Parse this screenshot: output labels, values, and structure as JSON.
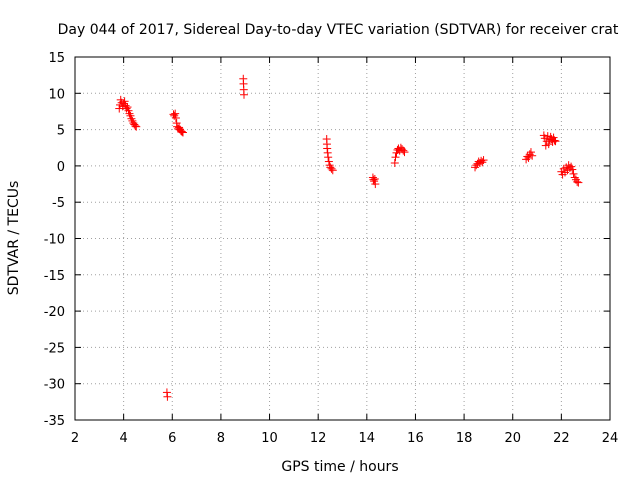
{
  "chart_data": {
    "type": "scatter",
    "title": "Day 044 of 2017, Sidereal Day-to-day VTEC variation (SDTVAR) for receiver crat",
    "xlabel": "GPS time / hours",
    "ylabel": "SDTVAR / TECUs",
    "xlim": [
      2,
      24
    ],
    "ylim": [
      -35,
      15
    ],
    "xticks": [
      "2",
      "4",
      "6",
      "8",
      "10",
      "12",
      "14",
      "16",
      "18",
      "20",
      "22",
      "24"
    ],
    "yticks": [
      "15",
      "10",
      "5",
      "0",
      "-5",
      "-10",
      "-15",
      "-20",
      "-25",
      "-30",
      "-35"
    ],
    "grid": true,
    "marker": "+",
    "color": "#ff0000",
    "series": [
      {
        "name": "SDTVAR",
        "points": [
          [
            3.82,
            7.9
          ],
          [
            3.85,
            8.4
          ],
          [
            3.88,
            9.1
          ],
          [
            3.92,
            8.7
          ],
          [
            3.96,
            8.2
          ],
          [
            4.0,
            8.6
          ],
          [
            4.04,
            8.9
          ],
          [
            4.08,
            8.3
          ],
          [
            4.12,
            7.9
          ],
          [
            4.16,
            8.1
          ],
          [
            4.2,
            7.6
          ],
          [
            4.24,
            7.2
          ],
          [
            4.28,
            6.9
          ],
          [
            4.32,
            6.5
          ],
          [
            4.36,
            6.2
          ],
          [
            4.4,
            5.9
          ],
          [
            4.44,
            5.7
          ],
          [
            4.48,
            5.5
          ],
          [
            4.52,
            5.4
          ],
          [
            5.78,
            -31.2
          ],
          [
            5.8,
            -31.8
          ],
          [
            6.05,
            7.1
          ],
          [
            6.08,
            6.9
          ],
          [
            6.12,
            7.2
          ],
          [
            6.15,
            6.6
          ],
          [
            6.18,
            5.9
          ],
          [
            6.2,
            5.4
          ],
          [
            6.24,
            5.1
          ],
          [
            6.28,
            5.3
          ],
          [
            6.32,
            5.0
          ],
          [
            6.36,
            4.8
          ],
          [
            6.4,
            4.7
          ],
          [
            6.44,
            4.6
          ],
          [
            8.92,
            12.0
          ],
          [
            8.93,
            11.3
          ],
          [
            8.94,
            10.5
          ],
          [
            8.95,
            9.8
          ],
          [
            12.35,
            3.7
          ],
          [
            12.36,
            3.0
          ],
          [
            12.37,
            2.4
          ],
          [
            12.39,
            1.8
          ],
          [
            12.41,
            1.2
          ],
          [
            12.44,
            0.6
          ],
          [
            12.47,
            0.1
          ],
          [
            12.5,
            -0.2
          ],
          [
            12.55,
            -0.4
          ],
          [
            12.6,
            -0.6
          ],
          [
            14.25,
            -1.6
          ],
          [
            14.27,
            -1.9
          ],
          [
            14.3,
            -2.1
          ],
          [
            14.33,
            -1.8
          ],
          [
            14.35,
            -2.5
          ],
          [
            15.15,
            0.4
          ],
          [
            15.18,
            1.2
          ],
          [
            15.22,
            1.8
          ],
          [
            15.26,
            2.2
          ],
          [
            15.3,
            2.4
          ],
          [
            15.35,
            2.1
          ],
          [
            15.4,
            2.5
          ],
          [
            15.45,
            2.3
          ],
          [
            15.5,
            2.1
          ],
          [
            15.55,
            1.9
          ],
          [
            18.45,
            -0.2
          ],
          [
            18.5,
            0.1
          ],
          [
            18.55,
            0.3
          ],
          [
            18.6,
            0.6
          ],
          [
            18.65,
            0.4
          ],
          [
            18.7,
            0.7
          ],
          [
            18.75,
            0.5
          ],
          [
            18.8,
            0.8
          ],
          [
            20.55,
            0.9
          ],
          [
            20.6,
            1.3
          ],
          [
            20.65,
            1.1
          ],
          [
            20.7,
            1.6
          ],
          [
            20.75,
            1.9
          ],
          [
            20.8,
            1.4
          ],
          [
            21.28,
            4.2
          ],
          [
            21.32,
            3.8
          ],
          [
            21.36,
            2.8
          ],
          [
            21.4,
            3.4
          ],
          [
            21.44,
            4.1
          ],
          [
            21.48,
            3.0
          ],
          [
            21.52,
            3.6
          ],
          [
            21.56,
            4.0
          ],
          [
            21.6,
            3.7
          ],
          [
            21.64,
            3.3
          ],
          [
            21.68,
            3.9
          ],
          [
            21.72,
            3.5
          ],
          [
            21.76,
            3.4
          ],
          [
            22.0,
            -0.8
          ],
          [
            22.05,
            -1.2
          ],
          [
            22.1,
            -0.4
          ],
          [
            22.15,
            -0.9
          ],
          [
            22.2,
            -0.2
          ],
          [
            22.25,
            -0.6
          ],
          [
            22.3,
            0.1
          ],
          [
            22.35,
            -0.3
          ],
          [
            22.4,
            -0.1
          ],
          [
            22.45,
            -0.5
          ],
          [
            22.5,
            -1.1
          ],
          [
            22.55,
            -1.6
          ],
          [
            22.6,
            -1.9
          ],
          [
            22.65,
            -2.2
          ],
          [
            22.7,
            -2.3
          ]
        ]
      }
    ]
  }
}
